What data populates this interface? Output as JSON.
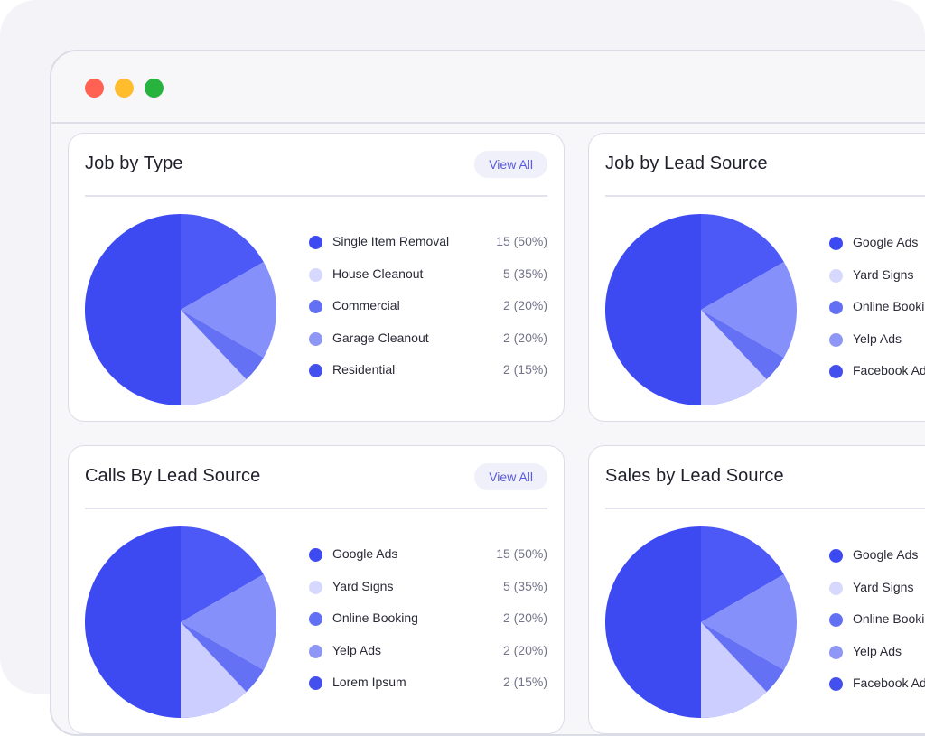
{
  "window": {
    "controls": [
      "close",
      "minimize",
      "maximize"
    ]
  },
  "colors": {
    "slice_1": "#3d4af2",
    "slice_2": "#4c59f7",
    "slice_3": "#8690fa",
    "slice_4": "#6571f5",
    "slice_5": "#ccceff",
    "swatch_1": "#3d4af2",
    "swatch_2": "#d6d8fd",
    "swatch_3": "#6270f3",
    "swatch_4": "#8e96f6",
    "swatch_5": "#4450ee"
  },
  "cards": [
    {
      "title": "Job by Type",
      "view_all": "View All",
      "legend": [
        {
          "label": "Single Item Removal",
          "value": "15 (50%)"
        },
        {
          "label": "House Cleanout",
          "value": "5 (35%)"
        },
        {
          "label": "Commercial",
          "value": "2 (20%)"
        },
        {
          "label": "Garage Cleanout",
          "value": "2 (20%)"
        },
        {
          "label": "Residential",
          "value": "2 (15%)"
        }
      ]
    },
    {
      "title": "Job by Lead Source",
      "legend": [
        {
          "label": "Google Ads"
        },
        {
          "label": "Yard Signs"
        },
        {
          "label": "Online Booking"
        },
        {
          "label": "Yelp Ads"
        },
        {
          "label": "Facebook Ads"
        }
      ]
    },
    {
      "title": "Calls By Lead Source",
      "view_all": "View All",
      "legend": [
        {
          "label": "Google Ads",
          "value": "15 (50%)"
        },
        {
          "label": "Yard Signs",
          "value": "5 (35%)"
        },
        {
          "label": "Online Booking",
          "value": "2 (20%)"
        },
        {
          "label": "Yelp Ads",
          "value": "2 (20%)"
        },
        {
          "label": "Lorem Ipsum",
          "value": "2 (15%)"
        }
      ]
    },
    {
      "title": "Sales by Lead Source",
      "legend": [
        {
          "label": "Google Ads"
        },
        {
          "label": "Yard Signs"
        },
        {
          "label": "Online Booking"
        },
        {
          "label": "Yelp Ads"
        },
        {
          "label": "Facebook Ads"
        }
      ]
    }
  ]
}
